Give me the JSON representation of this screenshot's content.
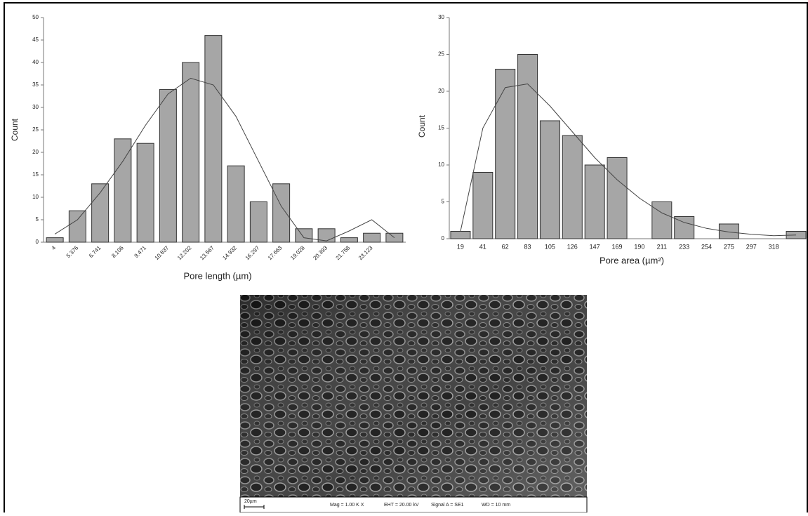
{
  "chart_data": [
    {
      "type": "bar",
      "x_label": "Pore length (µm)",
      "y_label": "Count",
      "categories": [
        "4",
        "5.376",
        "6.741",
        "8.106",
        "9.471",
        "10.837",
        "12.202",
        "13.567",
        "14.932",
        "16.297",
        "17.663",
        "19.028",
        "20.393",
        "21.758",
        "23.123",
        null
      ],
      "values": [
        1,
        7,
        13,
        23,
        22,
        34,
        40,
        46,
        17,
        9,
        13,
        3,
        3,
        1,
        2,
        2
      ],
      "fit_values": [
        1.8,
        5,
        11,
        18,
        26,
        33,
        36.5,
        35,
        28,
        18,
        8,
        1,
        0.3,
        2.5,
        5,
        1
      ],
      "color": "#a6a6a6",
      "line_color": "#444444",
      "ylim": [
        0,
        50
      ],
      "yticks": [
        0,
        5,
        10,
        15,
        20,
        25,
        30,
        35,
        40,
        45,
        50
      ]
    },
    {
      "type": "bar",
      "x_label": "Pore area (µm²)",
      "y_label": "Count",
      "categories": [
        "19",
        "41",
        "62",
        "83",
        "105",
        "126",
        "147",
        "169",
        "190",
        "211",
        "233",
        "254",
        "275",
        "297",
        "318",
        null
      ],
      "values": [
        1,
        9,
        23,
        25,
        16,
        14,
        10,
        11,
        0,
        5,
        3,
        0,
        2,
        0,
        0,
        1
      ],
      "fit_values": [
        1,
        15,
        20.5,
        21,
        18,
        14.5,
        11,
        8,
        5.5,
        3.5,
        2.2,
        1.4,
        0.9,
        0.6,
        0.4,
        0.5
      ],
      "color": "#a6a6a6",
      "line_color": "#444444",
      "ylim": [
        0,
        30
      ],
      "yticks": [
        0,
        5,
        10,
        15,
        20,
        25,
        30
      ]
    }
  ],
  "sem_image": {
    "scale_bar": "20µm",
    "info": [
      "Mag =  1.00 K X",
      "EHT = 20.00 kV",
      "Signal A = SE1",
      "WD =  10 mm"
    ]
  }
}
